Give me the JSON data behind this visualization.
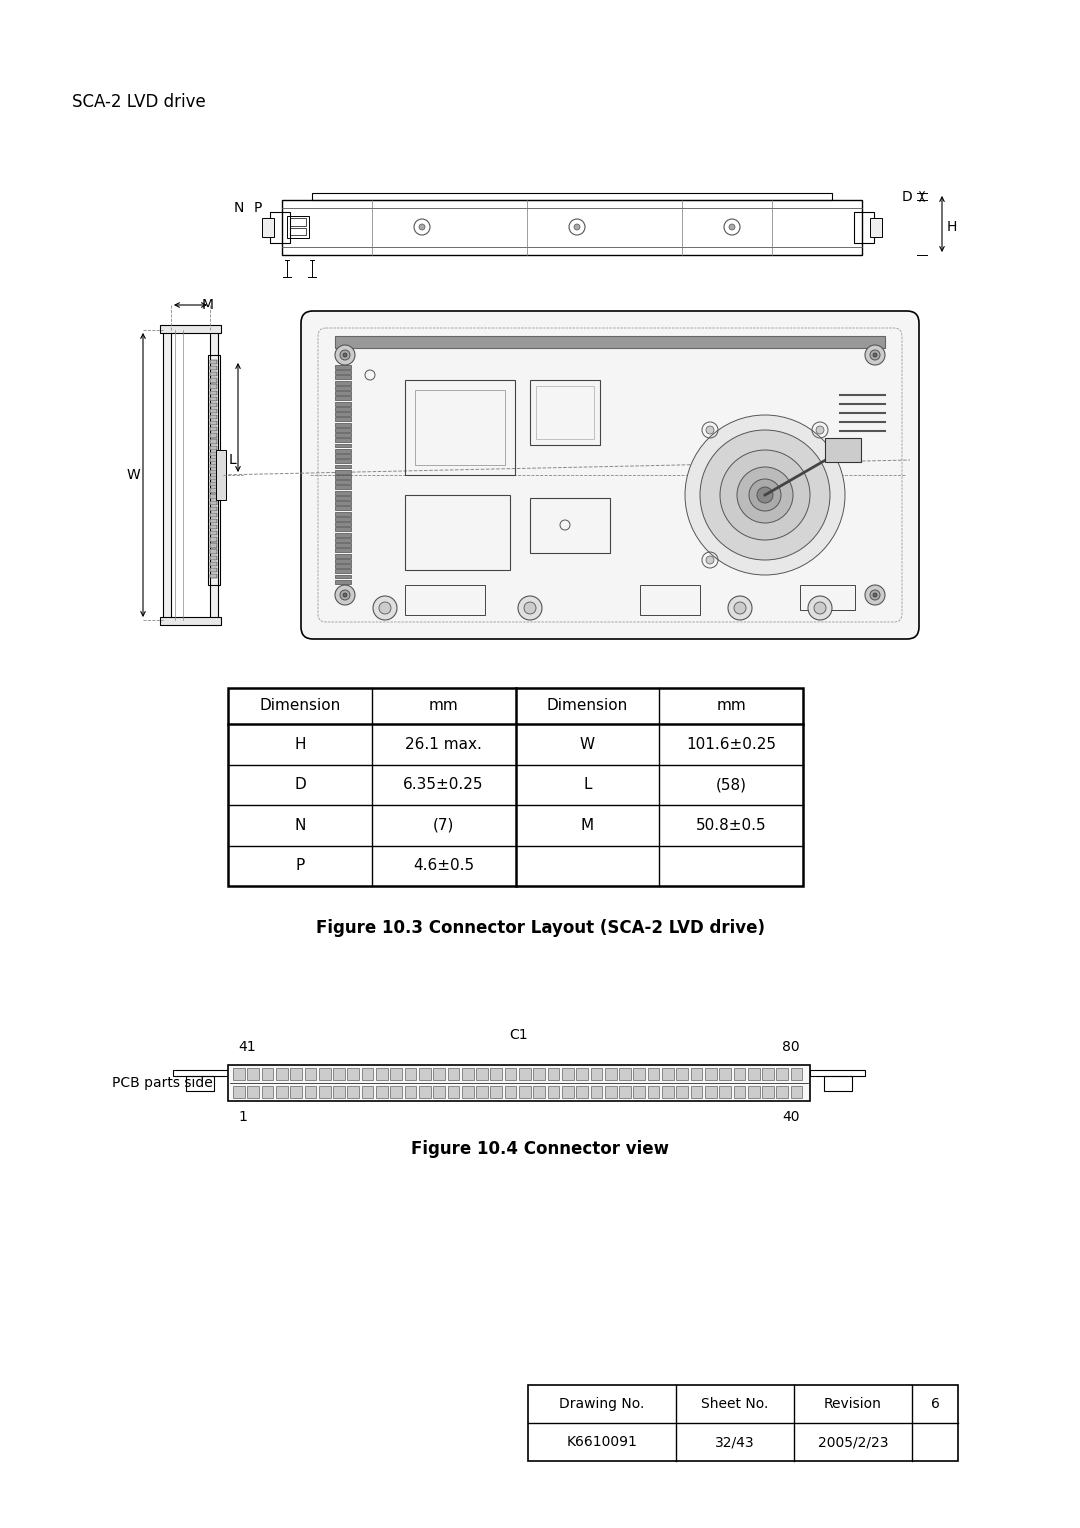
{
  "title": "SCA-2 LVD drive",
  "bg_color": "#ffffff",
  "table_data": {
    "headers": [
      "Dimension",
      "mm",
      "Dimension",
      "mm"
    ],
    "rows": [
      [
        "H",
        "26.1 max.",
        "W",
        "101.6±0.25"
      ],
      [
        "D",
        "6.35±0.25",
        "L",
        "(58)"
      ],
      [
        "N",
        "(7)",
        "M",
        "50.8±0.5"
      ],
      [
        "P",
        "4.6±0.5",
        "",
        ""
      ]
    ]
  },
  "fig3_caption": "Figure 10.3 Connector Layout (SCA-2 LVD drive)",
  "fig4_caption": "Figure 10.4 Connector view",
  "connector_labels": {
    "top_left": "41",
    "top_right": "80",
    "bottom_left": "1",
    "bottom_right": "40",
    "top_center": "C1",
    "left": "PCB parts side"
  },
  "footer_table": {
    "headers": [
      "Drawing No.",
      "Sheet No.",
      "Revision",
      "6"
    ],
    "row": [
      "K6610091",
      "32/43",
      "2005/2/23",
      ""
    ]
  },
  "line_color": "#000000",
  "gray_color": "#888888",
  "light_gray": "#cccccc",
  "mid_gray": "#999999"
}
